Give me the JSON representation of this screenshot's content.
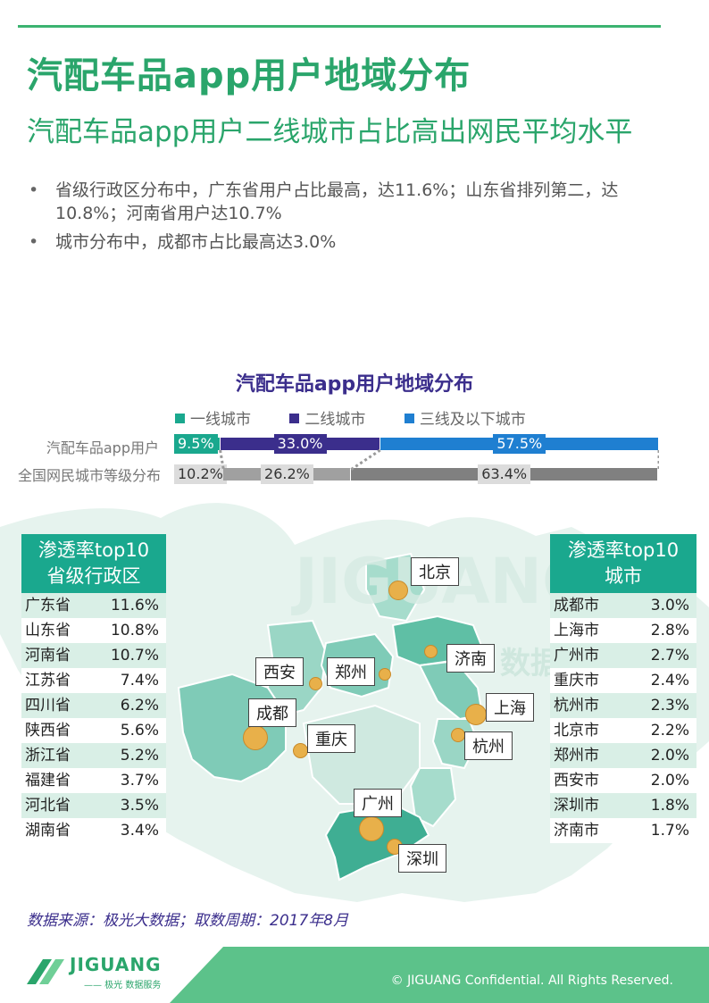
{
  "header": {
    "title": "汽配车品app用户地域分布",
    "subtitle": "汽配车品app用户二线城市占比高出网民平均水平"
  },
  "bullets": [
    "省级行政区分布中，广东省用户占比最高，达11.6%；山东省排列第二，达10.8%；河南省用户达10.7%",
    "城市分布中，成都市占比最高达3.0%"
  ],
  "chart_data": {
    "type": "bar",
    "stacked": true,
    "orientation": "horizontal",
    "title": "汽配车品app用户地域分布",
    "categories": [
      "汽配车品app用户",
      "全国网民城市等级分布"
    ],
    "series": [
      {
        "name": "一线城市",
        "values": [
          9.5,
          10.2
        ],
        "labels": [
          "9.5%",
          "10.2%"
        ],
        "color": "#1aa88e"
      },
      {
        "name": "二线城市",
        "values": [
          33.0,
          26.2
        ],
        "labels": [
          "33.0%",
          "26.2%"
        ],
        "color": "#3b2e8c"
      },
      {
        "name": "三线及以下城市",
        "values": [
          57.5,
          63.4
        ],
        "labels": [
          "57.5%",
          "63.4%"
        ],
        "color": "#1f7fd1"
      }
    ],
    "second_row_colors": [
      "#b5b5b5",
      "#a0a0a0",
      "#808080"
    ],
    "xlim": [
      0,
      100
    ],
    "legend": "top"
  },
  "province_panel": {
    "heading_line1": "渗透率top10",
    "heading_line2": "省级行政区",
    "rows": [
      {
        "name": "广东省",
        "value": "11.6%"
      },
      {
        "name": "山东省",
        "value": "10.8%"
      },
      {
        "name": "河南省",
        "value": "10.7%"
      },
      {
        "name": "江苏省",
        "value": "7.4%"
      },
      {
        "name": "四川省",
        "value": "6.2%"
      },
      {
        "name": "陕西省",
        "value": "5.6%"
      },
      {
        "name": "浙江省",
        "value": "5.2%"
      },
      {
        "name": "福建省",
        "value": "3.7%"
      },
      {
        "name": "河北省",
        "value": "3.5%"
      },
      {
        "name": "湖南省",
        "value": "3.4%"
      }
    ]
  },
  "city_panel": {
    "heading_line1": "渗透率top10",
    "heading_line2": "城市",
    "rows": [
      {
        "name": "成都市",
        "value": "3.0%"
      },
      {
        "name": "上海市",
        "value": "2.8%"
      },
      {
        "name": "广州市",
        "value": "2.7%"
      },
      {
        "name": "重庆市",
        "value": "2.4%"
      },
      {
        "name": "杭州市",
        "value": "2.3%"
      },
      {
        "name": "北京市",
        "value": "2.2%"
      },
      {
        "name": "郑州市",
        "value": "2.0%"
      },
      {
        "name": "西安市",
        "value": "2.0%"
      },
      {
        "name": "深圳市",
        "value": "1.8%"
      },
      {
        "name": "济南市",
        "value": "1.7%"
      }
    ]
  },
  "map": {
    "cities": [
      "北京",
      "济南",
      "西安",
      "郑州",
      "上海",
      "成都",
      "重庆",
      "杭州",
      "广州",
      "深圳"
    ],
    "watermark": "JIGUANG",
    "watermark_cn": "数据服务"
  },
  "source": "数据来源：极光大数据；取数周期：2017年8月",
  "footer": {
    "logo": "JIGUANG",
    "logo_sub": "—— 极光 数据服务",
    "copyright": "© JIGUANG  Confidential. All Rights Reserved."
  },
  "colors": {
    "brand_green": "#2aa56b",
    "teal": "#1aa88e",
    "purple": "#3b2e8c",
    "blue": "#1f7fd1",
    "bubble": "#e8b04a"
  }
}
